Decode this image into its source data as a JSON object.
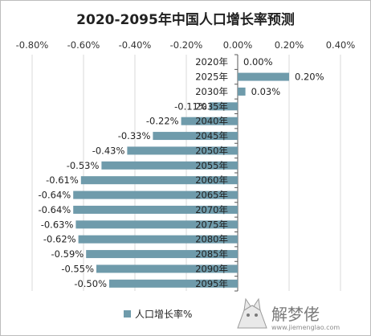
{
  "chart_data": {
    "type": "bar",
    "orientation": "horizontal",
    "title": "2020-2095年中国人口增长率预测",
    "xlim": [
      -0.8,
      0.4
    ],
    "x_ticks": [
      "-0.80%",
      "-0.60%",
      "-0.40%",
      "-0.20%",
      "0.00%",
      "0.20%",
      "0.40%"
    ],
    "x_axis_position": "top",
    "grid": true,
    "categories": [
      "2020年",
      "2025年",
      "2030年",
      "2035年",
      "2040年",
      "2045年",
      "2050年",
      "2055年",
      "2060年",
      "2065年",
      "2070年",
      "2075年",
      "2080年",
      "2085年",
      "2090年",
      "2095年"
    ],
    "series": [
      {
        "name": "人口增长率%",
        "color": "#6f9bab",
        "values": [
          0.0,
          0.2,
          0.03,
          -0.11,
          -0.22,
          -0.33,
          -0.43,
          -0.53,
          -0.61,
          -0.64,
          -0.64,
          -0.63,
          -0.62,
          -0.59,
          -0.55,
          -0.5
        ],
        "labels": [
          "0.00%",
          "0.20%",
          "0.03%",
          "-0.11%",
          "-0.22%",
          "-0.33%",
          "-0.43%",
          "-0.53%",
          "-0.61%",
          "-0.64%",
          "-0.64%",
          "-0.63%",
          "-0.62%",
          "-0.59%",
          "-0.55%",
          "-0.50%"
        ]
      }
    ],
    "legend": {
      "placement": "bottom",
      "label": "人口增长率%"
    }
  },
  "watermark": {
    "text": "解梦佬",
    "url": "www.jiemenglao.com",
    "icon": "cat-logo-icon"
  },
  "colors": {
    "bar": "#6f9bab",
    "grid": "#d9d9d9",
    "axis": "#595959",
    "text": "#222222"
  }
}
